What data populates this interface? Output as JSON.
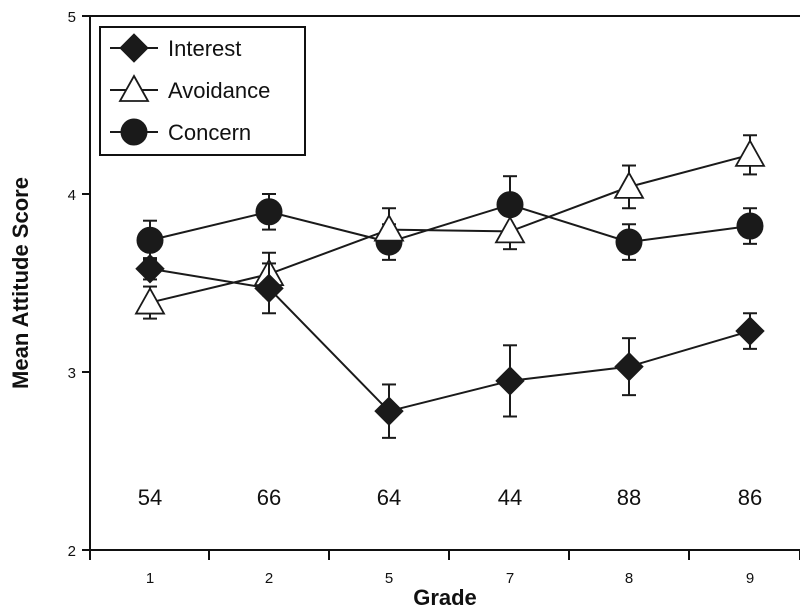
{
  "chart_data": {
    "type": "line",
    "xlabel": "Grade",
    "ylabel": "Mean Attitude Score",
    "categories": [
      "1",
      "2",
      "5",
      "7",
      "8",
      "9"
    ],
    "ylim": [
      2,
      5
    ],
    "yticks": [
      "2",
      "3",
      "4",
      "5"
    ],
    "grid": false,
    "legend_position": "top-left",
    "sample_sizes": [
      "54",
      "66",
      "64",
      "44",
      "88",
      "86"
    ],
    "series": [
      {
        "name": "Interest",
        "marker": "filled-diamond",
        "values": [
          3.58,
          3.47,
          2.78,
          2.95,
          3.03,
          3.23
        ],
        "error": [
          0.06,
          0.14,
          0.15,
          0.2,
          0.16,
          0.1
        ]
      },
      {
        "name": "Avoidance",
        "marker": "open-triangle",
        "values": [
          3.39,
          3.55,
          3.8,
          3.79,
          4.04,
          4.22
        ],
        "error": [
          0.09,
          0.12,
          0.12,
          0.1,
          0.12,
          0.11
        ]
      },
      {
        "name": "Concern",
        "marker": "filled-circle",
        "values": [
          3.74,
          3.9,
          3.73,
          3.94,
          3.73,
          3.82
        ],
        "error": [
          0.11,
          0.1,
          0.1,
          0.16,
          0.1,
          0.1
        ]
      }
    ]
  }
}
